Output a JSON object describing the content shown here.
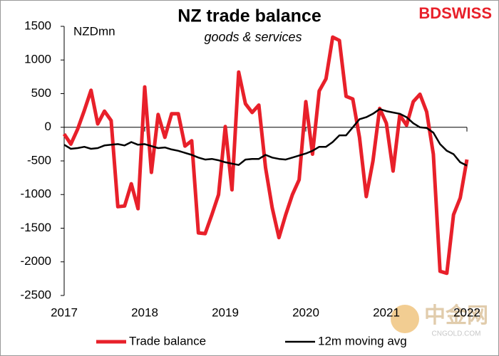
{
  "chart_data": {
    "type": "line",
    "title": "NZ trade balance",
    "subtitle": "goods & services",
    "y_label": "NZDmn",
    "brand": "BDSWISS",
    "watermark": [
      "中金网",
      "CNGOLD.COM"
    ],
    "categories": [
      "2017",
      null,
      null,
      null,
      null,
      null,
      null,
      null,
      null,
      null,
      null,
      null,
      "2018",
      null,
      null,
      null,
      null,
      null,
      null,
      null,
      null,
      null,
      null,
      null,
      "2019",
      null,
      null,
      null,
      null,
      null,
      null,
      null,
      null,
      null,
      null,
      null,
      "2020",
      null,
      null,
      null,
      null,
      null,
      null,
      null,
      null,
      null,
      null,
      null,
      "2021",
      null,
      null,
      null,
      null,
      null,
      null,
      null,
      null,
      null,
      null,
      null,
      "2022"
    ],
    "series": [
      {
        "name": "Trade balance",
        "color": "#e8202a",
        "width": 5,
        "values": [
          -100,
          -250,
          -30,
          250,
          550,
          50,
          240,
          100,
          -1180,
          -1170,
          -840,
          -1210,
          600,
          -670,
          190,
          -150,
          200,
          200,
          -280,
          -200,
          -1570,
          -1580,
          -1300,
          -1000,
          10,
          -930,
          820,
          350,
          220,
          330,
          -600,
          -1200,
          -1640,
          -1300,
          -1000,
          -780,
          380,
          -400,
          540,
          720,
          1340,
          1290,
          460,
          420,
          -150,
          -1030,
          -500,
          280,
          60,
          -650,
          180,
          30,
          380,
          490,
          230,
          -400,
          -2140,
          -2170,
          -1300,
          -1050,
          -480
        ]
      },
      {
        "name": "12m moving avg",
        "color": "#000000",
        "width": 2.5,
        "values": [
          -260,
          -320,
          -310,
          -290,
          -320,
          -310,
          -270,
          -260,
          -250,
          -270,
          -220,
          -260,
          -250,
          -280,
          -310,
          -300,
          -330,
          -350,
          -380,
          -410,
          -450,
          -480,
          -470,
          -490,
          -520,
          -540,
          -560,
          -480,
          -470,
          -470,
          -410,
          -450,
          -470,
          -480,
          -450,
          -420,
          -390,
          -350,
          -290,
          -290,
          -220,
          -120,
          -120,
          0,
          120,
          150,
          200,
          270,
          240,
          220,
          200,
          150,
          60,
          0,
          -10,
          -80,
          -250,
          -350,
          -400,
          -520,
          -570
        ]
      }
    ],
    "ylim": [
      -2500,
      1500
    ],
    "yticks": [
      -2500,
      -2000,
      -1500,
      -1000,
      -500,
      0,
      500,
      1000,
      1500
    ],
    "grid": false,
    "legend": "bottom"
  }
}
